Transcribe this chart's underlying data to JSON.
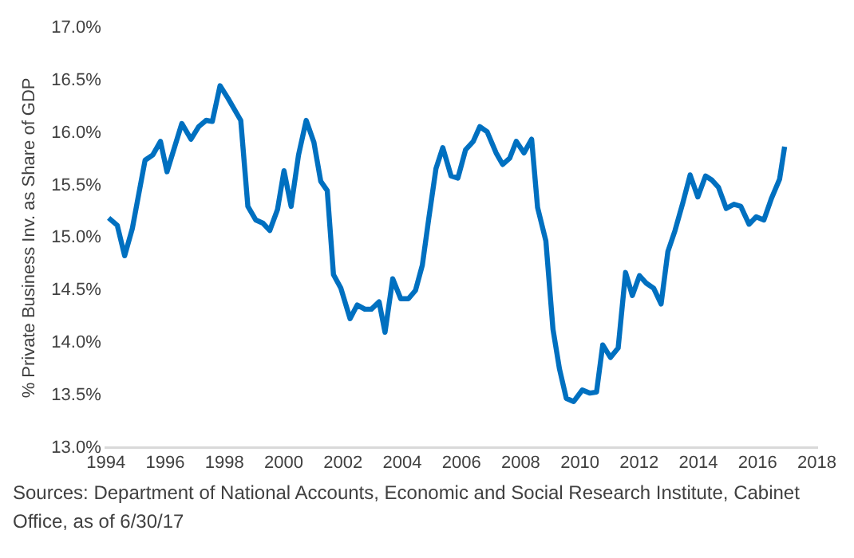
{
  "chart_data": {
    "type": "line",
    "ylabel": "% Private Business Inv. as Share of GDP",
    "x": [
      1994.09,
      1994.38,
      1994.63,
      1994.89,
      1995.32,
      1995.58,
      1995.84,
      1996.06,
      1996.56,
      1996.87,
      1997.13,
      1997.38,
      1997.59,
      1997.85,
      1998.12,
      1998.55,
      1998.79,
      1999.06,
      1999.3,
      1999.53,
      1999.79,
      2000.01,
      2000.25,
      2000.5,
      2000.76,
      2001.02,
      2001.25,
      2001.47,
      2001.68,
      2001.93,
      2002.24,
      2002.48,
      2002.74,
      2002.96,
      2003.22,
      2003.42,
      2003.68,
      2003.95,
      2004.21,
      2004.45,
      2004.68,
      2004.9,
      2005.14,
      2005.37,
      2005.65,
      2005.88,
      2006.14,
      2006.4,
      2006.62,
      2006.87,
      2007.17,
      2007.39,
      2007.63,
      2007.85,
      2008.11,
      2008.37,
      2008.57,
      2008.85,
      2009.09,
      2009.31,
      2009.54,
      2009.79,
      2010.08,
      2010.34,
      2010.56,
      2010.77,
      2011.03,
      2011.29,
      2011.54,
      2011.77,
      2012.01,
      2012.23,
      2012.49,
      2012.74,
      2012.97,
      2013.21,
      2013.48,
      2013.72,
      2013.98,
      2014.24,
      2014.46,
      2014.68,
      2014.94,
      2015.2,
      2015.43,
      2015.71,
      2015.95,
      2016.21,
      2016.47,
      2016.74,
      2016.91
    ],
    "series": [
      {
        "color": "#0070c0",
        "values": [
          15.19,
          15.12,
          14.83,
          15.09,
          15.74,
          15.79,
          15.92,
          15.63,
          16.09,
          15.94,
          16.06,
          16.12,
          16.11,
          16.45,
          16.33,
          16.12,
          15.3,
          15.17,
          15.14,
          15.07,
          15.27,
          15.64,
          15.3,
          15.79,
          16.12,
          15.91,
          15.54,
          15.45,
          14.65,
          14.52,
          14.23,
          14.36,
          14.32,
          14.32,
          14.39,
          14.1,
          14.61,
          14.42,
          14.42,
          14.5,
          14.74,
          15.19,
          15.66,
          15.86,
          15.59,
          15.57,
          15.84,
          15.92,
          16.06,
          16.01,
          15.81,
          15.7,
          15.76,
          15.92,
          15.81,
          15.94,
          15.29,
          14.97,
          14.13,
          13.75,
          13.47,
          13.44,
          13.55,
          13.52,
          13.53,
          13.98,
          13.86,
          13.95,
          14.67,
          14.45,
          14.64,
          14.57,
          14.52,
          14.37,
          14.87,
          15.07,
          15.34,
          15.6,
          15.39,
          15.59,
          15.55,
          15.48,
          15.28,
          15.32,
          15.3,
          15.13,
          15.2,
          15.17,
          15.38,
          15.56,
          15.87
        ]
      }
    ],
    "xlim": [
      1994,
      2018
    ],
    "xticks": [
      1994,
      1996,
      1998,
      2000,
      2002,
      2004,
      2006,
      2008,
      2010,
      2012,
      2014,
      2016,
      2018
    ],
    "ylim": [
      13,
      17
    ],
    "yticks": [
      {
        "value": 13,
        "label": "13.0%"
      },
      {
        "value": 13.5,
        "label": "13.5%"
      },
      {
        "value": 14,
        "label": "14.0%"
      },
      {
        "value": 14.5,
        "label": "14.5%"
      },
      {
        "value": 15,
        "label": "15.0%"
      },
      {
        "value": 15.5,
        "label": "15.5%"
      },
      {
        "value": 16,
        "label": "16.0%"
      },
      {
        "value": 16.5,
        "label": "16.5%"
      },
      {
        "value": 17,
        "label": "17.0%"
      }
    ],
    "grid": false,
    "legend": false,
    "marker": "none",
    "line_style": "solid",
    "annotations": [
      "Sources: Department of National Accounts, Economic and Social Research Institute, Cabinet Office, as of 6/30/17"
    ]
  }
}
